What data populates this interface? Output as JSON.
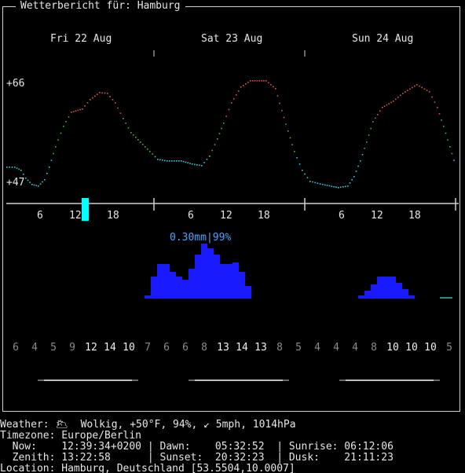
{
  "header": {
    "title": "Wetterbericht für: Hamburg"
  },
  "days": [
    "Fri 22 Aug",
    "Sat 23 Aug",
    "Sun 24 Aug"
  ],
  "temperature": {
    "max_label": "+66",
    "min_label": "+47"
  },
  "hour_ticks": [
    "6",
    "12",
    "18"
  ],
  "precipitation": {
    "label": "0.30mm|99%"
  },
  "wind": {
    "icon_glyph": "",
    "speeds": [
      "6",
      "4",
      "5",
      "9",
      "12",
      "14",
      "10",
      "7",
      "6",
      "6",
      "8",
      "13",
      "14",
      "13",
      "8",
      "5",
      "4",
      "4",
      "4",
      "8",
      "10",
      "10",
      "10",
      "5"
    ],
    "bright": [
      false,
      false,
      false,
      false,
      true,
      true,
      true,
      false,
      false,
      false,
      false,
      true,
      true,
      true,
      false,
      false,
      false,
      false,
      false,
      false,
      true,
      true,
      true,
      false
    ]
  },
  "moon_glyph": "",
  "footer": {
    "weather": "Weather: 🌥  Wolkig, +50°F, 94%, ↙ 5mph, 1014hPa",
    "timezone": "Timezone: Europe/Berlin",
    "now_line": "  Now:    12:39:34+0200 | Dawn:    05:32:52  | Sunrise: 06:12:06",
    "zenith_line": "  Zenith: 13:22:58      | Sunset:  20:32:23  | Dusk:    21:11:23",
    "location": "Location: Hamburg, Deutschland [53.5504,10.0007]"
  },
  "colors": {
    "temp_hot": "#d9534f",
    "temp_mild": "#4cae4c",
    "temp_cold": "#39c6d6",
    "precip": "#1a1aff",
    "now_marker": "#00ffff",
    "frame": "#cfcfcf"
  }
}
